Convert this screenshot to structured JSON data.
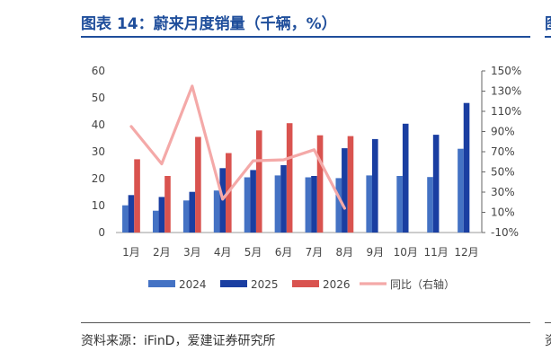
{
  "title": "图表 14：蔚来月度销量（千辆，%）",
  "source": "资料来源：iFinD，爱建证券研究所",
  "edge_fragment": "图",
  "edge_source_fragment": "资",
  "chart_data": {
    "type": "bar",
    "categories": [
      "1月",
      "2月",
      "3月",
      "4月",
      "5月",
      "6月",
      "7月",
      "8月",
      "9月",
      "10月",
      "11月",
      "12月"
    ],
    "series": [
      {
        "name": "2024",
        "type": "bar",
        "axis": "left",
        "color": "#4472c4",
        "values": [
          10.1,
          8.1,
          11.9,
          15.6,
          20.5,
          21.2,
          20.5,
          20.2,
          21.2,
          21.0,
          20.6,
          31.1
        ]
      },
      {
        "name": "2025",
        "type": "bar",
        "axis": "left",
        "color": "#1a3ea1",
        "values": [
          13.9,
          13.2,
          15.1,
          23.9,
          23.2,
          25.0,
          21.0,
          31.3,
          34.7,
          40.4,
          36.3,
          48.1
        ]
      },
      {
        "name": "2026",
        "type": "bar",
        "axis": "left",
        "color": "#d9534f",
        "values": [
          27.2,
          21.0,
          35.5,
          29.5,
          37.9,
          40.6,
          36.1,
          35.8,
          null,
          null,
          null,
          null
        ]
      },
      {
        "name": "同比（右轴）",
        "type": "line",
        "axis": "right",
        "color": "#f4a9a8",
        "values": [
          95,
          58,
          135,
          23,
          61,
          62,
          72,
          14,
          null,
          null,
          null,
          null
        ]
      }
    ],
    "left_axis": {
      "ticks": [
        "0",
        "10",
        "20",
        "30",
        "40",
        "50",
        "60"
      ],
      "min": 0,
      "max": 60
    },
    "right_axis": {
      "ticks": [
        "-10%",
        "10%",
        "30%",
        "50%",
        "70%",
        "90%",
        "110%",
        "130%",
        "150%"
      ],
      "min": -10,
      "max": 150
    },
    "legend_position": "bottom",
    "grid": false
  }
}
